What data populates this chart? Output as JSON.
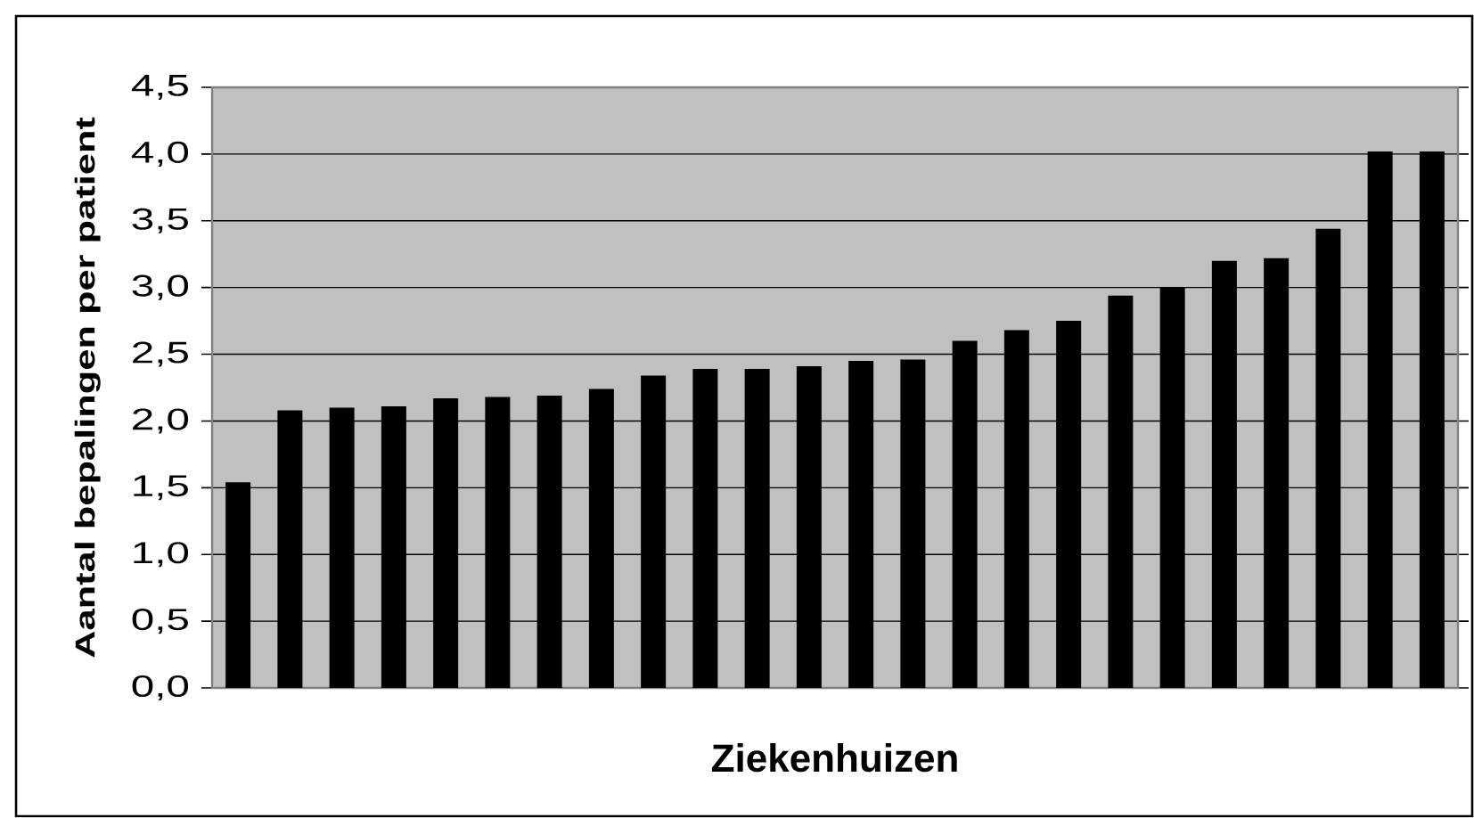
{
  "chart_data": {
    "type": "bar",
    "xlabel": "Ziekenhuizen",
    "ylabel": "Aantal bepalingen per patient",
    "categories": [
      null,
      null,
      null,
      null,
      null,
      null,
      null,
      null,
      null,
      null,
      null,
      null,
      null,
      null,
      null,
      null,
      null,
      null,
      null,
      null,
      null,
      null,
      null,
      null
    ],
    "values": [
      1.54,
      2.08,
      2.1,
      2.11,
      2.17,
      2.18,
      2.19,
      2.24,
      2.34,
      2.39,
      2.39,
      2.41,
      2.45,
      2.46,
      2.6,
      2.68,
      2.75,
      2.94,
      3.0,
      3.2,
      3.22,
      3.44,
      4.02,
      4.02
    ],
    "color": "#000000",
    "ylim": [
      0,
      4.5
    ],
    "yticks": [
      {
        "value": 0,
        "label": "0,0"
      },
      {
        "value": 0.5,
        "label": "0,5"
      },
      {
        "value": 1,
        "label": "1,0"
      },
      {
        "value": 1.5,
        "label": "1,5"
      },
      {
        "value": 2,
        "label": "2,0"
      },
      {
        "value": 2.5,
        "label": "2,5"
      },
      {
        "value": 3,
        "label": "3,0"
      },
      {
        "value": 3.5,
        "label": "3,5"
      },
      {
        "value": 4,
        "label": "4,0"
      },
      {
        "value": 4.5,
        "label": "4,5"
      }
    ],
    "grid": "y"
  }
}
